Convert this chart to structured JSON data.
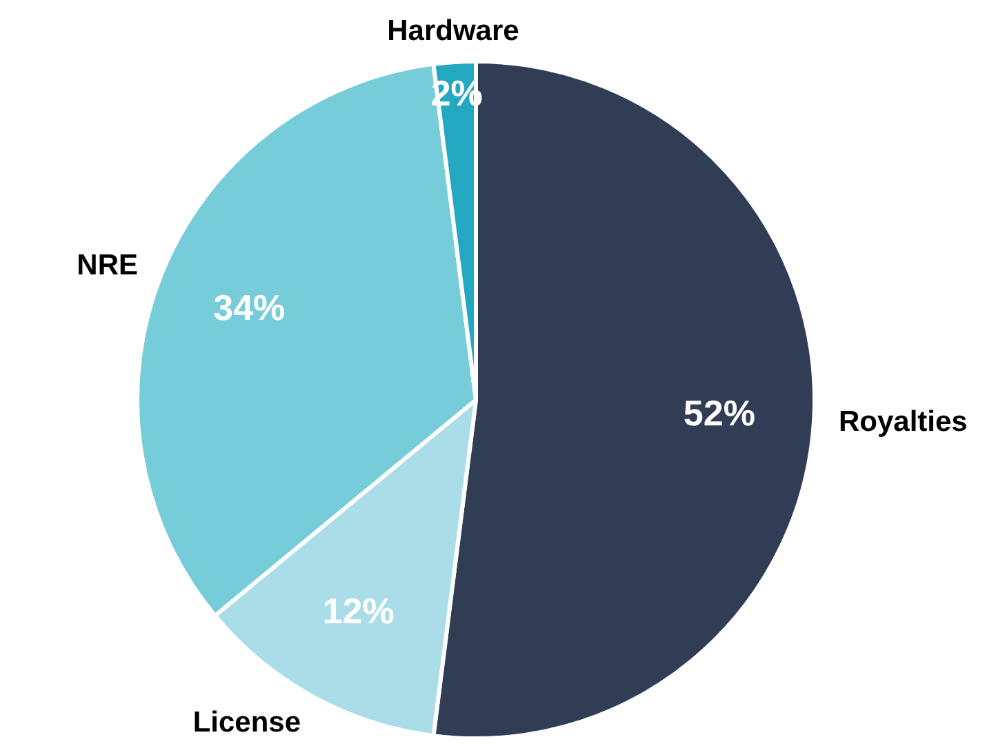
{
  "chart_data": {
    "type": "pie",
    "categories": [
      "Royalties",
      "License",
      "NRE",
      "Hardware"
    ],
    "values": [
      52,
      12,
      34,
      2
    ],
    "colors": [
      "#303d55",
      "#aadde8",
      "#76cdd9",
      "#22a8c0"
    ],
    "value_labels": [
      "52%",
      "12%",
      "34%",
      "2%"
    ],
    "legend": false
  }
}
